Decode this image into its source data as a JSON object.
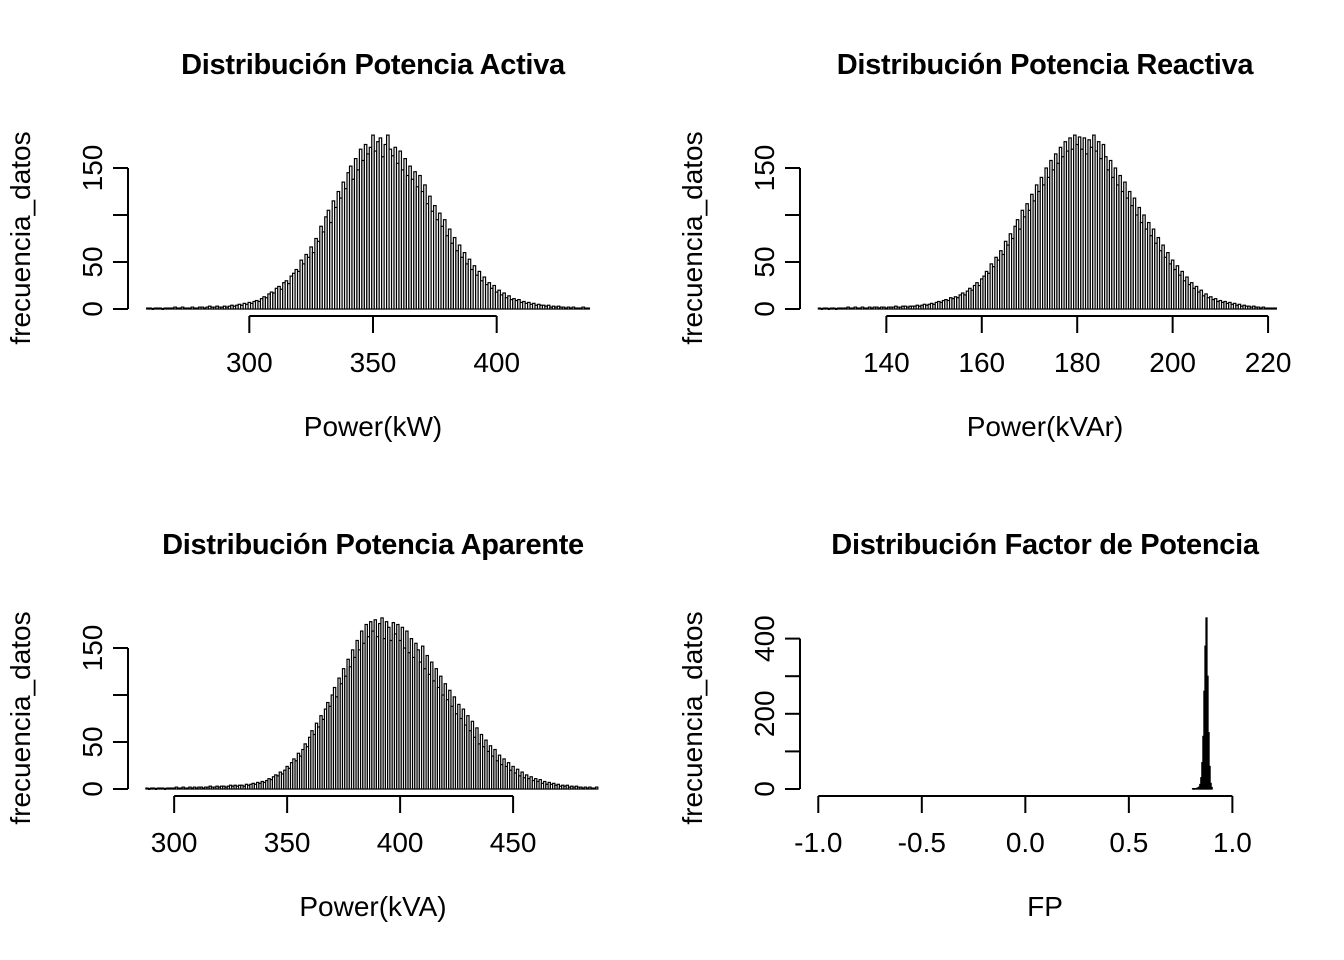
{
  "figure": {
    "background": "#ffffff",
    "ink_color": "#000000",
    "layout": "2x2 histogram grid"
  },
  "chart_data": [
    {
      "type": "bar",
      "subtype": "histogram",
      "title": "Distribución Potencia Activa",
      "xlabel": "Power(kW)",
      "ylabel": "frecuencia_datos",
      "xlim": [
        255,
        445
      ],
      "ylim": [
        0,
        200
      ],
      "xticks": [
        300,
        350,
        400
      ],
      "xtick_labels": [
        "300",
        "350",
        "400"
      ],
      "yticks": [
        0,
        50,
        100,
        150
      ],
      "ytick_labels": [
        "0",
        "50",
        "",
        "150"
      ],
      "grid": false,
      "legend": null,
      "bins": {
        "start": 258.5,
        "width": 1,
        "heights": [
          1,
          1,
          0,
          1,
          1,
          1,
          0,
          1,
          1,
          1,
          1,
          2,
          1,
          1,
          2,
          1,
          1,
          1,
          2,
          1,
          1,
          2,
          2,
          1,
          2,
          3,
          2,
          2,
          3,
          2,
          2,
          3,
          2,
          3,
          4,
          3,
          4,
          5,
          4,
          6,
          5,
          7,
          6,
          8,
          9,
          8,
          11,
          13,
          12,
          16,
          18,
          17,
          22,
          24,
          21,
          28,
          30,
          27,
          35,
          38,
          42,
          40,
          52,
          48,
          58,
          55,
          66,
          60,
          75,
          72,
          88,
          82,
          98,
          105,
          92,
          115,
          108,
          125,
          118,
          135,
          128,
          145,
          152,
          138,
          160,
          148,
          170,
          158,
          175,
          165,
          172,
          185,
          168,
          178,
          182,
          162,
          175,
          185,
          170,
          163,
          172,
          155,
          168,
          148,
          160,
          142,
          152,
          138,
          146,
          130,
          142,
          125,
          132,
          112,
          120,
          104,
          110,
          95,
          102,
          88,
          95,
          78,
          85,
          70,
          76,
          62,
          68,
          55,
          60,
          48,
          53,
          42,
          46,
          36,
          40,
          30,
          34,
          26,
          28,
          22,
          25,
          18,
          20,
          15,
          17,
          12,
          14,
          10,
          11,
          9,
          10,
          7,
          8,
          6,
          7,
          5,
          6,
          4,
          5,
          4,
          4,
          3,
          4,
          2,
          3,
          2,
          3,
          2,
          2,
          1,
          2,
          1,
          2,
          1,
          1,
          1,
          2,
          1,
          1
        ]
      }
    },
    {
      "type": "bar",
      "subtype": "histogram",
      "title": "Distribución Potencia Reactiva",
      "xlabel": "Power(kVAr)",
      "ylabel": "frecuencia_datos",
      "xlim": [
        124,
        222.5
      ],
      "ylim": [
        0,
        200
      ],
      "xticks": [
        140,
        160,
        180,
        200,
        220
      ],
      "xtick_labels": [
        "140",
        "160",
        "180",
        "200",
        "220"
      ],
      "yticks": [
        0,
        50,
        100,
        150
      ],
      "ytick_labels": [
        "0",
        "50",
        "",
        "150"
      ],
      "grid": false,
      "legend": null,
      "bins": {
        "start": 125.75,
        "width": 0.5,
        "heights": [
          1,
          0,
          1,
          1,
          0,
          1,
          1,
          0,
          1,
          1,
          1,
          1,
          2,
          1,
          1,
          2,
          1,
          1,
          2,
          1,
          1,
          2,
          1,
          2,
          2,
          1,
          2,
          2,
          1,
          2,
          2,
          2,
          3,
          2,
          2,
          3,
          3,
          2,
          3,
          3,
          3,
          4,
          3,
          4,
          5,
          4,
          5,
          6,
          5,
          7,
          8,
          7,
          9,
          10,
          9,
          12,
          11,
          13,
          12,
          15,
          17,
          15,
          19,
          22,
          20,
          25,
          28,
          25,
          32,
          35,
          40,
          38,
          48,
          45,
          55,
          52,
          62,
          58,
          72,
          68,
          80,
          75,
          88,
          95,
          85,
          105,
          98,
          112,
          105,
          122,
          115,
          132,
          125,
          140,
          132,
          150,
          140,
          158,
          148,
          165,
          155,
          172,
          162,
          178,
          168,
          182,
          170,
          185,
          175,
          183,
          170,
          182,
          165,
          180,
          172,
          185,
          168,
          178,
          160,
          175,
          162,
          148,
          158,
          140,
          150,
          132,
          142,
          125,
          135,
          118,
          125,
          110,
          118,
          100,
          108,
          92,
          100,
          85,
          92,
          78,
          85,
          70,
          76,
          62,
          68,
          55,
          60,
          48,
          52,
          42,
          46,
          36,
          40,
          30,
          34,
          26,
          28,
          22,
          24,
          18,
          20,
          14,
          16,
          12,
          13,
          10,
          11,
          8,
          9,
          7,
          8,
          6,
          7,
          5,
          6,
          4,
          5,
          3,
          4,
          3,
          3,
          2,
          3,
          2,
          2,
          1,
          2,
          1,
          1,
          1,
          1,
          1
        ]
      }
    },
    {
      "type": "bar",
      "subtype": "histogram",
      "title": "Distribución Potencia Aparente",
      "xlabel": "Power(kVA)",
      "ylabel": "frecuencia_datos",
      "xlim": [
        284,
        492
      ],
      "ylim": [
        0,
        200
      ],
      "xticks": [
        300,
        350,
        400,
        450
      ],
      "xtick_labels": [
        "300",
        "350",
        "400",
        "450"
      ],
      "yticks": [
        0,
        50,
        100,
        150
      ],
      "ytick_labels": [
        "0",
        "50",
        "",
        "150"
      ],
      "grid": false,
      "legend": null,
      "bins": {
        "start": 287.5,
        "width": 1,
        "heights": [
          1,
          0,
          1,
          1,
          0,
          1,
          1,
          1,
          0,
          1,
          1,
          1,
          1,
          2,
          1,
          1,
          2,
          1,
          1,
          2,
          1,
          2,
          1,
          2,
          2,
          1,
          2,
          2,
          3,
          2,
          2,
          3,
          2,
          3,
          3,
          2,
          3,
          4,
          3,
          4,
          3,
          4,
          4,
          3,
          5,
          4,
          5,
          6,
          5,
          7,
          6,
          8,
          7,
          9,
          11,
          10,
          13,
          15,
          14,
          18,
          16,
          20,
          24,
          22,
          28,
          32,
          30,
          38,
          35,
          42,
          48,
          45,
          55,
          62,
          58,
          70,
          66,
          78,
          74,
          85,
          92,
          88,
          100,
          108,
          98,
          118,
          112,
          128,
          120,
          138,
          130,
          148,
          140,
          158,
          148,
          168,
          155,
          175,
          162,
          178,
          168,
          180,
          162,
          176,
          182,
          160,
          178,
          172,
          158,
          177,
          165,
          175,
          158,
          172,
          150,
          168,
          145,
          160,
          140,
          155,
          148,
          135,
          152,
          128,
          142,
          122,
          135,
          115,
          128,
          108,
          120,
          100,
          112,
          95,
          105,
          88,
          98,
          80,
          90,
          75,
          85,
          68,
          78,
          62,
          72,
          55,
          65,
          48,
          58,
          45,
          52,
          40,
          46,
          35,
          42,
          30,
          36,
          26,
          32,
          24,
          28,
          20,
          24,
          17,
          21,
          14,
          18,
          12,
          15,
          11,
          13,
          9,
          11,
          8,
          10,
          6,
          8,
          5,
          7,
          5,
          6,
          4,
          5,
          3,
          4,
          3,
          4,
          2,
          3,
          2,
          3,
          2,
          2,
          1,
          2,
          1,
          2,
          1,
          1,
          2
        ]
      }
    },
    {
      "type": "bar",
      "subtype": "histogram",
      "title": "Distribución Factor de Potencia",
      "xlabel": "FP",
      "ylabel": "frecuencia_datos",
      "xlim": [
        -1.04,
        1.23
      ],
      "ylim": [
        0,
        500
      ],
      "xticks": [
        -1.0,
        -0.5,
        0.0,
        0.5,
        1.0
      ],
      "xtick_labels": [
        "-1.0",
        "-0.5",
        "0.0",
        "0.5",
        "1.0"
      ],
      "yticks": [
        0,
        100,
        200,
        300,
        400
      ],
      "ytick_labels": [
        "0",
        "",
        "200",
        "",
        "400"
      ],
      "grid": false,
      "legend": null,
      "bins": {
        "start": 0.8075,
        "width": 0.005,
        "heights": [
          1,
          0,
          1,
          1,
          2,
          3,
          5,
          12,
          30,
          70,
          140,
          260,
          380,
          455,
          300,
          150,
          60,
          15,
          4
        ]
      }
    }
  ]
}
